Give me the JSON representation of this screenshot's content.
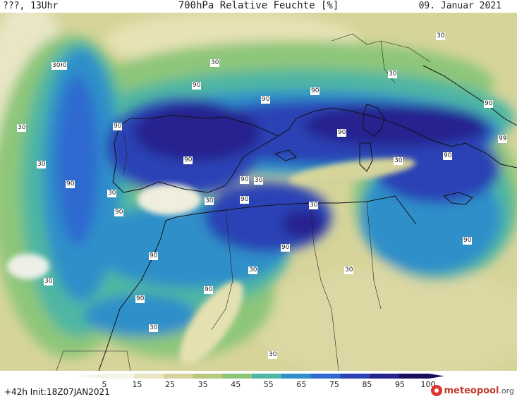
{
  "header": {
    "left": "???, 13Uhr",
    "title": "700hPa Relative Feuchte [%]",
    "date": "09. Januar 2021"
  },
  "footer": {
    "run_info": "+42h Init:18Z07JAN2021",
    "logo_main": "meteopool",
    "logo_tld": ".org"
  },
  "colorbar": {
    "labels": [
      "5",
      "15",
      "25",
      "35",
      "45",
      "55",
      "65",
      "75",
      "85",
      "95",
      "100"
    ],
    "colors": [
      "#f4f4e6",
      "#e8e6c4",
      "#d6d49a",
      "#b9c87a",
      "#8dc67a",
      "#4fb6a3",
      "#2f8fc9",
      "#2f6ad0",
      "#2b43b5",
      "#26248f",
      "#1a0f5e"
    ]
  },
  "contour_labels": [
    {
      "text": "90"
    },
    {
      "text": "30"
    },
    {
      "text": "30"
    },
    {
      "text": "90"
    },
    {
      "text": "30"
    },
    {
      "text": "30"
    },
    {
      "text": "90"
    },
    {
      "text": "90"
    },
    {
      "text": "90"
    },
    {
      "text": "30"
    },
    {
      "text": "90"
    },
    {
      "text": "90"
    },
    {
      "text": "90"
    },
    {
      "text": "90"
    },
    {
      "text": "30"
    },
    {
      "text": "90"
    },
    {
      "text": "30"
    },
    {
      "text": "90"
    },
    {
      "text": "30"
    },
    {
      "text": "90"
    },
    {
      "text": "90"
    },
    {
      "text": "30"
    },
    {
      "text": "90"
    },
    {
      "text": "90"
    },
    {
      "text": "30"
    },
    {
      "text": "30"
    },
    {
      "text": "90"
    },
    {
      "text": "30"
    },
    {
      "text": "30"
    },
    {
      "text": "90"
    },
    {
      "text": "90"
    },
    {
      "text": "30"
    },
    {
      "text": "30"
    },
    {
      "text": "99"
    },
    {
      "text": "30"
    }
  ]
}
